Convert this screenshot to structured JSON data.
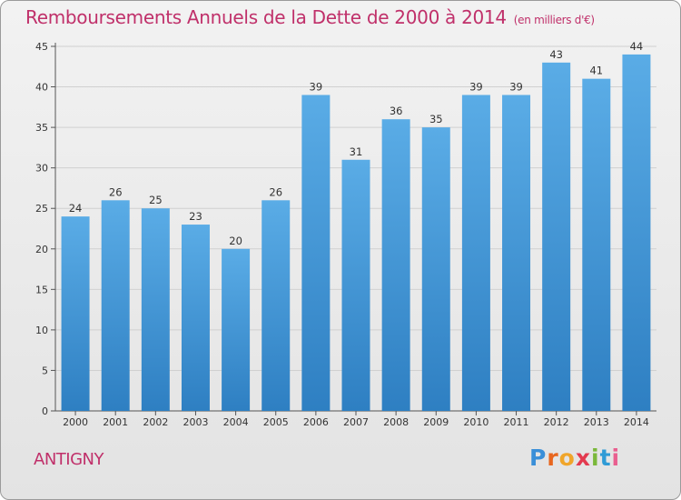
{
  "header": {
    "title": "Remboursements Annuels de la Dette de 2000 à 2014",
    "unit": "(en milliers d'€)"
  },
  "footer": {
    "commune": "ANTIGNY",
    "logo_letters": [
      "P",
      "r",
      "o",
      "x",
      "i",
      "t",
      "i"
    ]
  },
  "colors": {
    "bar_light": "#5aace6",
    "bar_dark": "#2e7fc2",
    "title": "#c0306a"
  },
  "chart_data": {
    "type": "bar",
    "title": "Remboursements Annuels de la Dette de 2000 à 2014 (en milliers d'€)",
    "xlabel": "",
    "ylabel": "",
    "categories": [
      "2000",
      "2001",
      "2002",
      "2003",
      "2004",
      "2005",
      "2006",
      "2007",
      "2008",
      "2009",
      "2010",
      "2011",
      "2012",
      "2013",
      "2014"
    ],
    "values": [
      24,
      26,
      25,
      23,
      20,
      26,
      39,
      31,
      36,
      35,
      39,
      39,
      43,
      41,
      44
    ],
    "ylim": [
      0,
      45
    ],
    "yticks": [
      0,
      5,
      10,
      15,
      20,
      25,
      30,
      35,
      40,
      45
    ],
    "grid": true,
    "legend": "none"
  }
}
